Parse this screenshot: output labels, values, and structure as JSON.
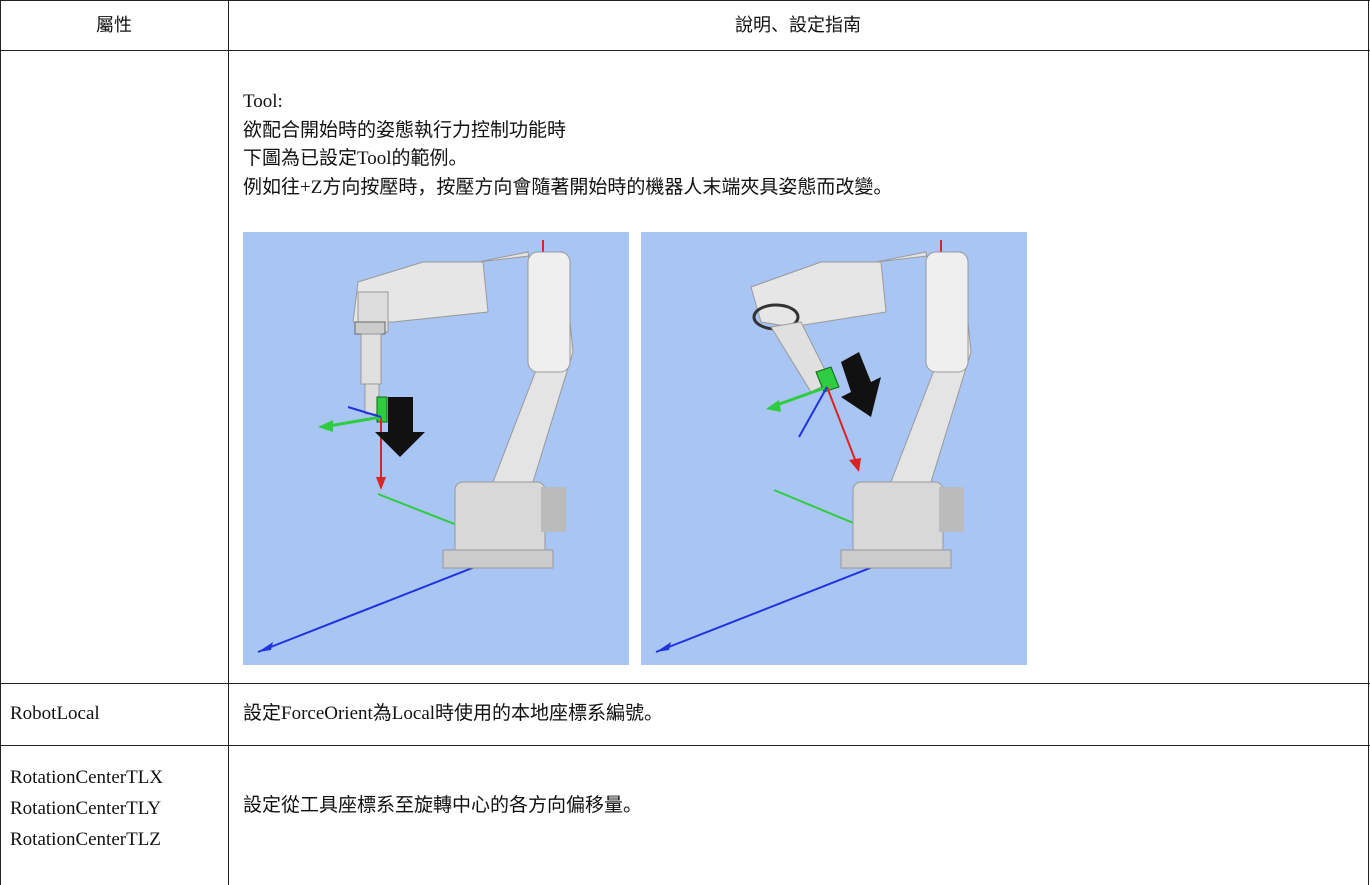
{
  "table": {
    "header": [
      "屬性",
      "說明、設定指南"
    ],
    "rows": [
      {
        "description": [
          "Tool:",
          "欲配合開始時的姿態執行力控制功能時",
          "下圖為已設定Tool的範例。",
          "例如往+Z方向按壓時，按壓方向會隨著開始時的機器人末端夾具姿態而改變。"
        ]
      },
      {
        "property": [
          "RobotLocal"
        ],
        "description": [
          "設定ForceOrient為Local時使用的本地座標系編號。"
        ]
      },
      {
        "property": [
          "RotationCenterTLX",
          "RotationCenterTLY",
          "RotationCenterTLZ"
        ],
        "description": [
          "設定從工具座標系至旋轉中心的各方向偏移量。"
        ]
      }
    ]
  }
}
